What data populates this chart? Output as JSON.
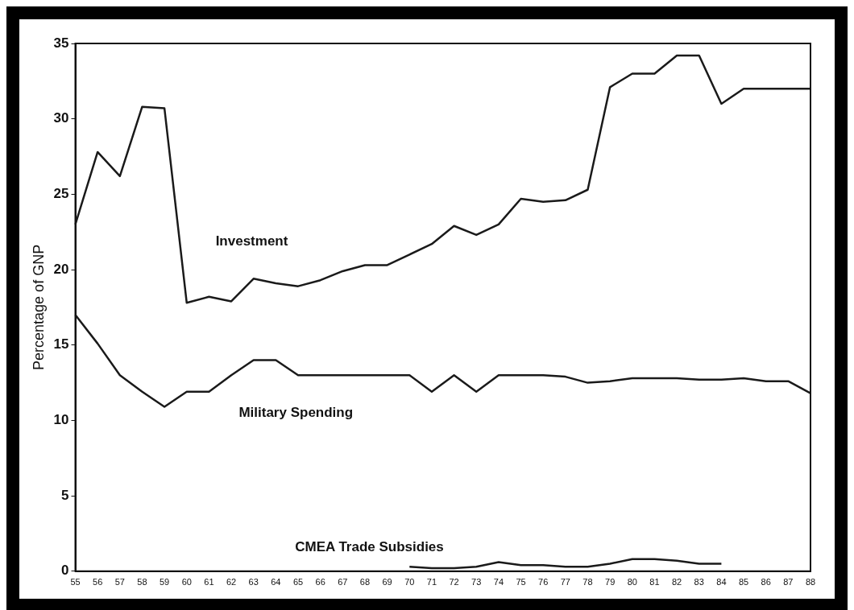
{
  "chart_data": {
    "type": "line",
    "ylabel": "Percentage of GNP",
    "categories": [
      "55",
      "56",
      "57",
      "58",
      "59",
      "60",
      "61",
      "62",
      "63",
      "64",
      "65",
      "66",
      "67",
      "68",
      "69",
      "70",
      "71",
      "72",
      "73",
      "74",
      "75",
      "76",
      "77",
      "78",
      "79",
      "80",
      "81",
      "82",
      "83",
      "84",
      "85",
      "86",
      "87",
      "88"
    ],
    "series": [
      {
        "name": "Investment",
        "color": "#1a1a1a",
        "values": [
          23,
          27.8,
          26.2,
          30.8,
          30.7,
          17.8,
          18.2,
          17.9,
          19.4,
          19.1,
          18.9,
          19.3,
          19.9,
          20.3,
          20.3,
          21.0,
          21.7,
          22.9,
          22.3,
          23.0,
          24.7,
          24.5,
          24.6,
          25.3,
          32.1,
          33.0,
          33.0,
          34.2,
          34.2,
          31.0,
          32,
          32,
          32,
          32
        ]
      },
      {
        "name": "Military Spending",
        "color": "#1a1a1a",
        "values": [
          17,
          15.1,
          13,
          11.9,
          10.9,
          11.9,
          11.9,
          13,
          14,
          14,
          13,
          13,
          13,
          13,
          13,
          13,
          11.9,
          13,
          11.9,
          13,
          13,
          13,
          12.9,
          12.5,
          12.6,
          12.8,
          12.8,
          12.8,
          12.7,
          12.7,
          12.8,
          12.6,
          12.6,
          11.8
        ]
      },
      {
        "name": "CMEA Trade Subsidies",
        "color": "#1a1a1a",
        "values": [
          null,
          null,
          null,
          null,
          null,
          null,
          null,
          null,
          null,
          null,
          null,
          null,
          null,
          null,
          null,
          0.3,
          0.2,
          0.2,
          0.3,
          0.6,
          0.4,
          0.4,
          0.3,
          0.3,
          0.5,
          0.8,
          0.8,
          0.7,
          0.5,
          0.5,
          null,
          null,
          null,
          null
        ]
      }
    ],
    "ylim": [
      0,
      35
    ],
    "yticks": [
      0,
      5,
      10,
      15,
      20,
      25,
      30,
      35
    ],
    "grid": false,
    "legend": false,
    "marker": "none",
    "line_style": "solid"
  }
}
